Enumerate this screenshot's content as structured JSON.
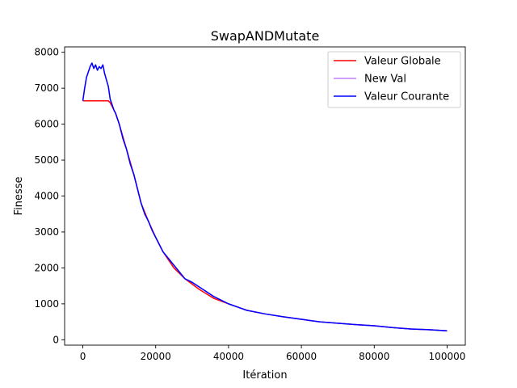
{
  "chart_data": {
    "type": "line",
    "title": "SwapANDMutate",
    "xlabel": "Itération",
    "ylabel": "Finesse",
    "xlim": [
      -5000,
      105000
    ],
    "ylim": [
      -150,
      8150
    ],
    "x_ticks": [
      0,
      20000,
      40000,
      60000,
      80000,
      100000
    ],
    "x_tick_labels": [
      "0",
      "20000",
      "40000",
      "60000",
      "80000",
      "100000"
    ],
    "y_ticks": [
      0,
      1000,
      2000,
      3000,
      4000,
      5000,
      6000,
      7000,
      8000
    ],
    "y_tick_labels": [
      "0",
      "1000",
      "2000",
      "3000",
      "4000",
      "5000",
      "6000",
      "7000",
      "8000"
    ],
    "grid": false,
    "legend_position": "upper right",
    "series": [
      {
        "name": "Valeur Globale",
        "color": "#ff0000",
        "x": [
          0,
          7000,
          7500,
          9000,
          10000,
          12000,
          14000,
          16000,
          18000,
          20000,
          22000,
          25000,
          28000,
          32000,
          36000,
          40000,
          45000,
          50000,
          55000,
          60000,
          65000,
          70000,
          75000,
          80000,
          85000,
          90000,
          95000,
          100000
        ],
        "y": [
          6650,
          6650,
          6600,
          6300,
          6000,
          5300,
          4600,
          3800,
          3300,
          2850,
          2450,
          2000,
          1700,
          1400,
          1150,
          1000,
          820,
          720,
          640,
          570,
          500,
          460,
          420,
          390,
          340,
          300,
          280,
          250
        ]
      },
      {
        "name": "New Val",
        "color": "#bf7fff",
        "x": [
          0,
          500,
          1000,
          2000,
          2500,
          3000,
          3500,
          4000,
          4500,
          5000,
          5500,
          6000,
          7000,
          7500,
          8500,
          9000,
          10000,
          11000,
          12000,
          13000,
          14000,
          15000,
          16000,
          17000,
          18000,
          19000,
          20000,
          22000,
          24000,
          26000,
          28000,
          30000,
          33000,
          36000,
          40000,
          45000,
          50000,
          55000,
          60000,
          65000,
          70000,
          75000,
          80000,
          85000,
          90000,
          95000,
          100000
        ],
        "y": [
          6650,
          7000,
          7300,
          7600,
          7700,
          7550,
          7650,
          7500,
          7600,
          7550,
          7650,
          7400,
          7050,
          6700,
          6400,
          6300,
          6000,
          5600,
          5300,
          4900,
          4600,
          4200,
          3800,
          3500,
          3300,
          3050,
          2850,
          2450,
          2200,
          1950,
          1700,
          1600,
          1400,
          1200,
          1000,
          820,
          720,
          640,
          570,
          500,
          460,
          420,
          390,
          340,
          300,
          280,
          250
        ]
      },
      {
        "name": "Valeur Courante",
        "color": "#0000ff",
        "x": [
          0,
          500,
          1000,
          2000,
          2500,
          3000,
          3500,
          4000,
          4500,
          5000,
          5500,
          6000,
          7000,
          7500,
          8500,
          9000,
          10000,
          11000,
          12000,
          13000,
          14000,
          15000,
          16000,
          17000,
          18000,
          19000,
          20000,
          22000,
          24000,
          26000,
          28000,
          30000,
          33000,
          36000,
          40000,
          45000,
          50000,
          55000,
          60000,
          65000,
          70000,
          75000,
          80000,
          85000,
          90000,
          95000,
          100000
        ],
        "y": [
          6650,
          7000,
          7300,
          7600,
          7700,
          7550,
          7650,
          7500,
          7600,
          7550,
          7650,
          7400,
          7050,
          6700,
          6400,
          6300,
          6000,
          5600,
          5300,
          4900,
          4600,
          4200,
          3800,
          3500,
          3300,
          3050,
          2850,
          2450,
          2200,
          1950,
          1700,
          1600,
          1400,
          1200,
          1000,
          820,
          720,
          640,
          570,
          500,
          460,
          420,
          390,
          340,
          300,
          280,
          250
        ]
      }
    ]
  }
}
